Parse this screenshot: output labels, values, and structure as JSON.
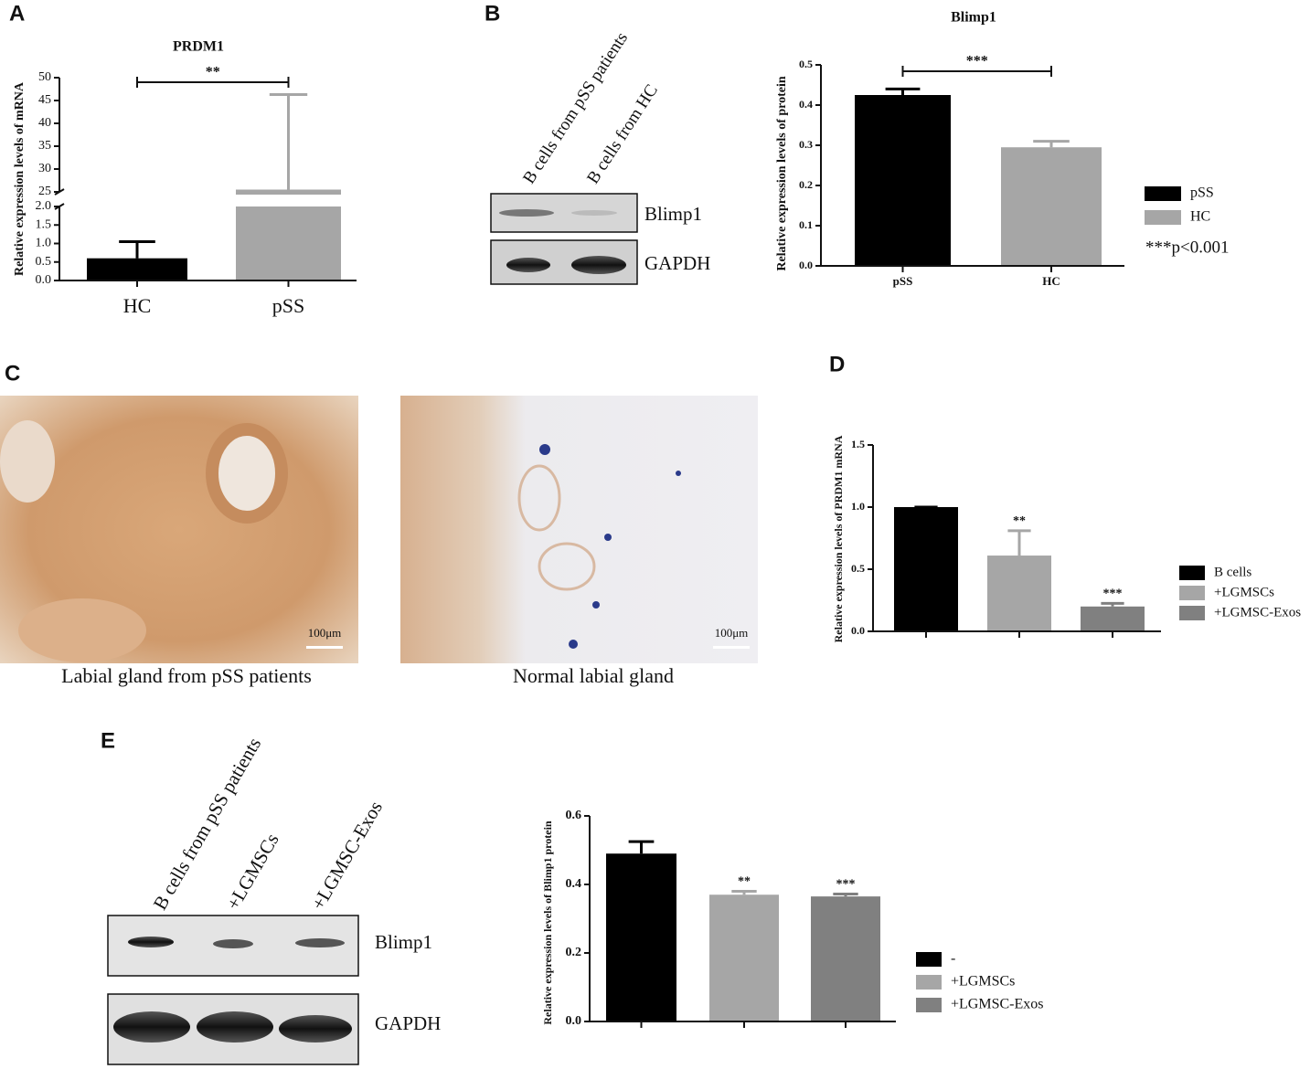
{
  "panel_labels": [
    "A",
    "B",
    "C",
    "D",
    "E"
  ],
  "blot_b": {
    "lanes": [
      "B cells from pSS patients",
      "B cells from HC"
    ],
    "rows": [
      "Blimp1",
      "GAPDH"
    ]
  },
  "micrographs": [
    {
      "caption": "Labial gland from pSS patients",
      "scale_bar": "100μm"
    },
    {
      "caption": "Normal labial gland",
      "scale_bar": "100μm"
    }
  ],
  "blot_e": {
    "lanes": [
      "B cells from pSS patients",
      "+LGMSCs",
      "+LGMSC-Exos"
    ],
    "rows": [
      "Blimp1",
      "GAPDH"
    ]
  },
  "chart_data": [
    {
      "type": "bar",
      "title": "PRDM1",
      "y_label": "Relative expression levels of mRNA",
      "categories": [
        "HC",
        "pSS"
      ],
      "values": [
        0.6,
        25.5
      ],
      "errors": [
        0.45,
        20.8
      ],
      "colors": [
        "#000000",
        "#a6a6a6"
      ],
      "ylim": [
        0,
        50
      ],
      "axis_break": [
        2,
        25
      ],
      "yticks": [
        {
          "value": 0,
          "label": "0.0"
        },
        0.5,
        {
          "value": 1,
          "label": "1.0"
        },
        1.5,
        {
          "value": 2,
          "label": "2.0"
        },
        25,
        30,
        35,
        40,
        45,
        50
      ],
      "bracket_label": "**"
    },
    {
      "type": "bar",
      "title": "Blimp1",
      "y_label": "Relative expression levels of protein",
      "categories": [
        "pSS",
        "HC"
      ],
      "series": [
        {
          "name": "pSS",
          "color": "#000000",
          "values": [
            0.425,
            null
          ],
          "errors": [
            0.015,
            null
          ]
        },
        {
          "name": "HC",
          "color": "#a6a6a6",
          "values": [
            null,
            0.295
          ],
          "errors": [
            null,
            0.015
          ]
        }
      ],
      "ylim": [
        0,
        0.5
      ],
      "yticks": [
        {
          "value": 0,
          "label": "0.0"
        },
        0.1,
        0.2,
        0.3,
        0.4,
        0.5
      ],
      "bracket_label": "***",
      "note": "***p<0.001"
    },
    {
      "type": "bar",
      "y_label": "Relative expression levels of PRDM1 mRNA",
      "categories": [
        null,
        null,
        null
      ],
      "series": [
        {
          "name": "B cells",
          "color": "#000000",
          "values": [
            1.0,
            null,
            null
          ],
          "errors": [
            0,
            null,
            null
          ]
        },
        {
          "name": "+LGMSCs",
          "color": "#a6a6a6",
          "values": [
            null,
            0.61,
            null
          ],
          "errors": [
            null,
            0.2,
            null
          ]
        },
        {
          "name": "+LGMSC-Exos",
          "color": "#808080",
          "values": [
            null,
            null,
            0.2
          ],
          "errors": [
            null,
            null,
            0.025
          ]
        }
      ],
      "sig_labels": [
        null,
        "**",
        "***"
      ],
      "ylim": [
        0,
        1.5
      ],
      "yticks": [
        {
          "value": 0,
          "label": "0.0"
        },
        0.5,
        {
          "value": 1,
          "label": "1.0"
        },
        1.5
      ]
    },
    {
      "type": "bar",
      "y_label": "Relative expression levels of Blimp1 protein",
      "categories": [
        null,
        null,
        null
      ],
      "series": [
        {
          "name": "-",
          "color": "#000000",
          "values": [
            0.49,
            null,
            null
          ],
          "errors": [
            0.035,
            null,
            null
          ]
        },
        {
          "name": "+LGMSCs",
          "color": "#a6a6a6",
          "values": [
            null,
            0.37,
            null
          ],
          "errors": [
            null,
            0.01,
            null
          ]
        },
        {
          "name": "+LGMSC-Exos",
          "color": "#808080",
          "values": [
            null,
            null,
            0.365
          ],
          "errors": [
            null,
            null,
            0.007
          ]
        }
      ],
      "sig_labels": [
        null,
        "**",
        "***"
      ],
      "ylim": [
        0,
        0.6
      ],
      "yticks": [
        {
          "value": 0,
          "label": "0.0"
        },
        0.2,
        0.4,
        0.6
      ]
    }
  ]
}
